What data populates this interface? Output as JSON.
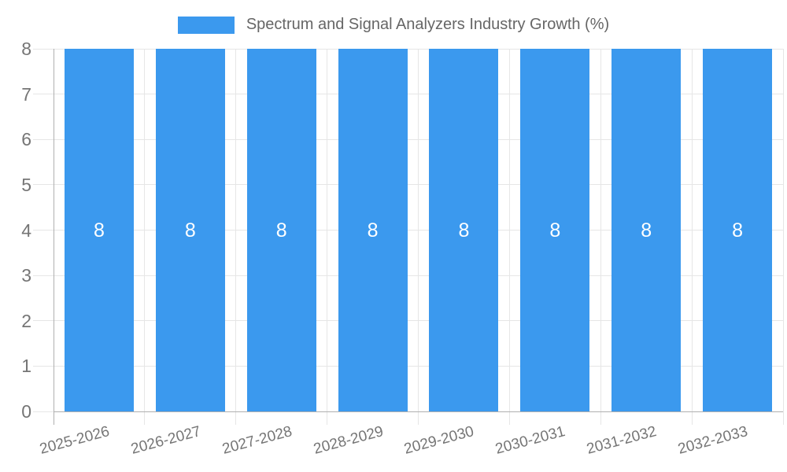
{
  "chart_data": {
    "type": "bar",
    "title": "Spectrum and Signal Analyzers Industry Growth (%)",
    "categories": [
      "2025-2026",
      "2026-2027",
      "2027-2028",
      "2028-2029",
      "2029-2030",
      "2030-2031",
      "2031-2032",
      "2032-2033"
    ],
    "values": [
      8,
      8,
      8,
      8,
      8,
      8,
      8,
      8
    ],
    "bar_value_labels": [
      "8",
      "8",
      "8",
      "8",
      "8",
      "8",
      "8",
      "8"
    ],
    "xlabel": "",
    "ylabel": "",
    "ylim": [
      0,
      8
    ],
    "yticks": [
      0,
      1,
      2,
      3,
      4,
      5,
      6,
      7,
      8
    ],
    "grid": true,
    "legend_position": "top",
    "x_label_rotation_deg": -15,
    "colors": {
      "bar": "#3B99EE",
      "bar_label": "#FFFFFF",
      "grid": "#E6E6E6",
      "axis": "#B0B0B0",
      "tick_text": "#757575",
      "title_text": "#666666",
      "background": "#FFFFFF"
    }
  }
}
